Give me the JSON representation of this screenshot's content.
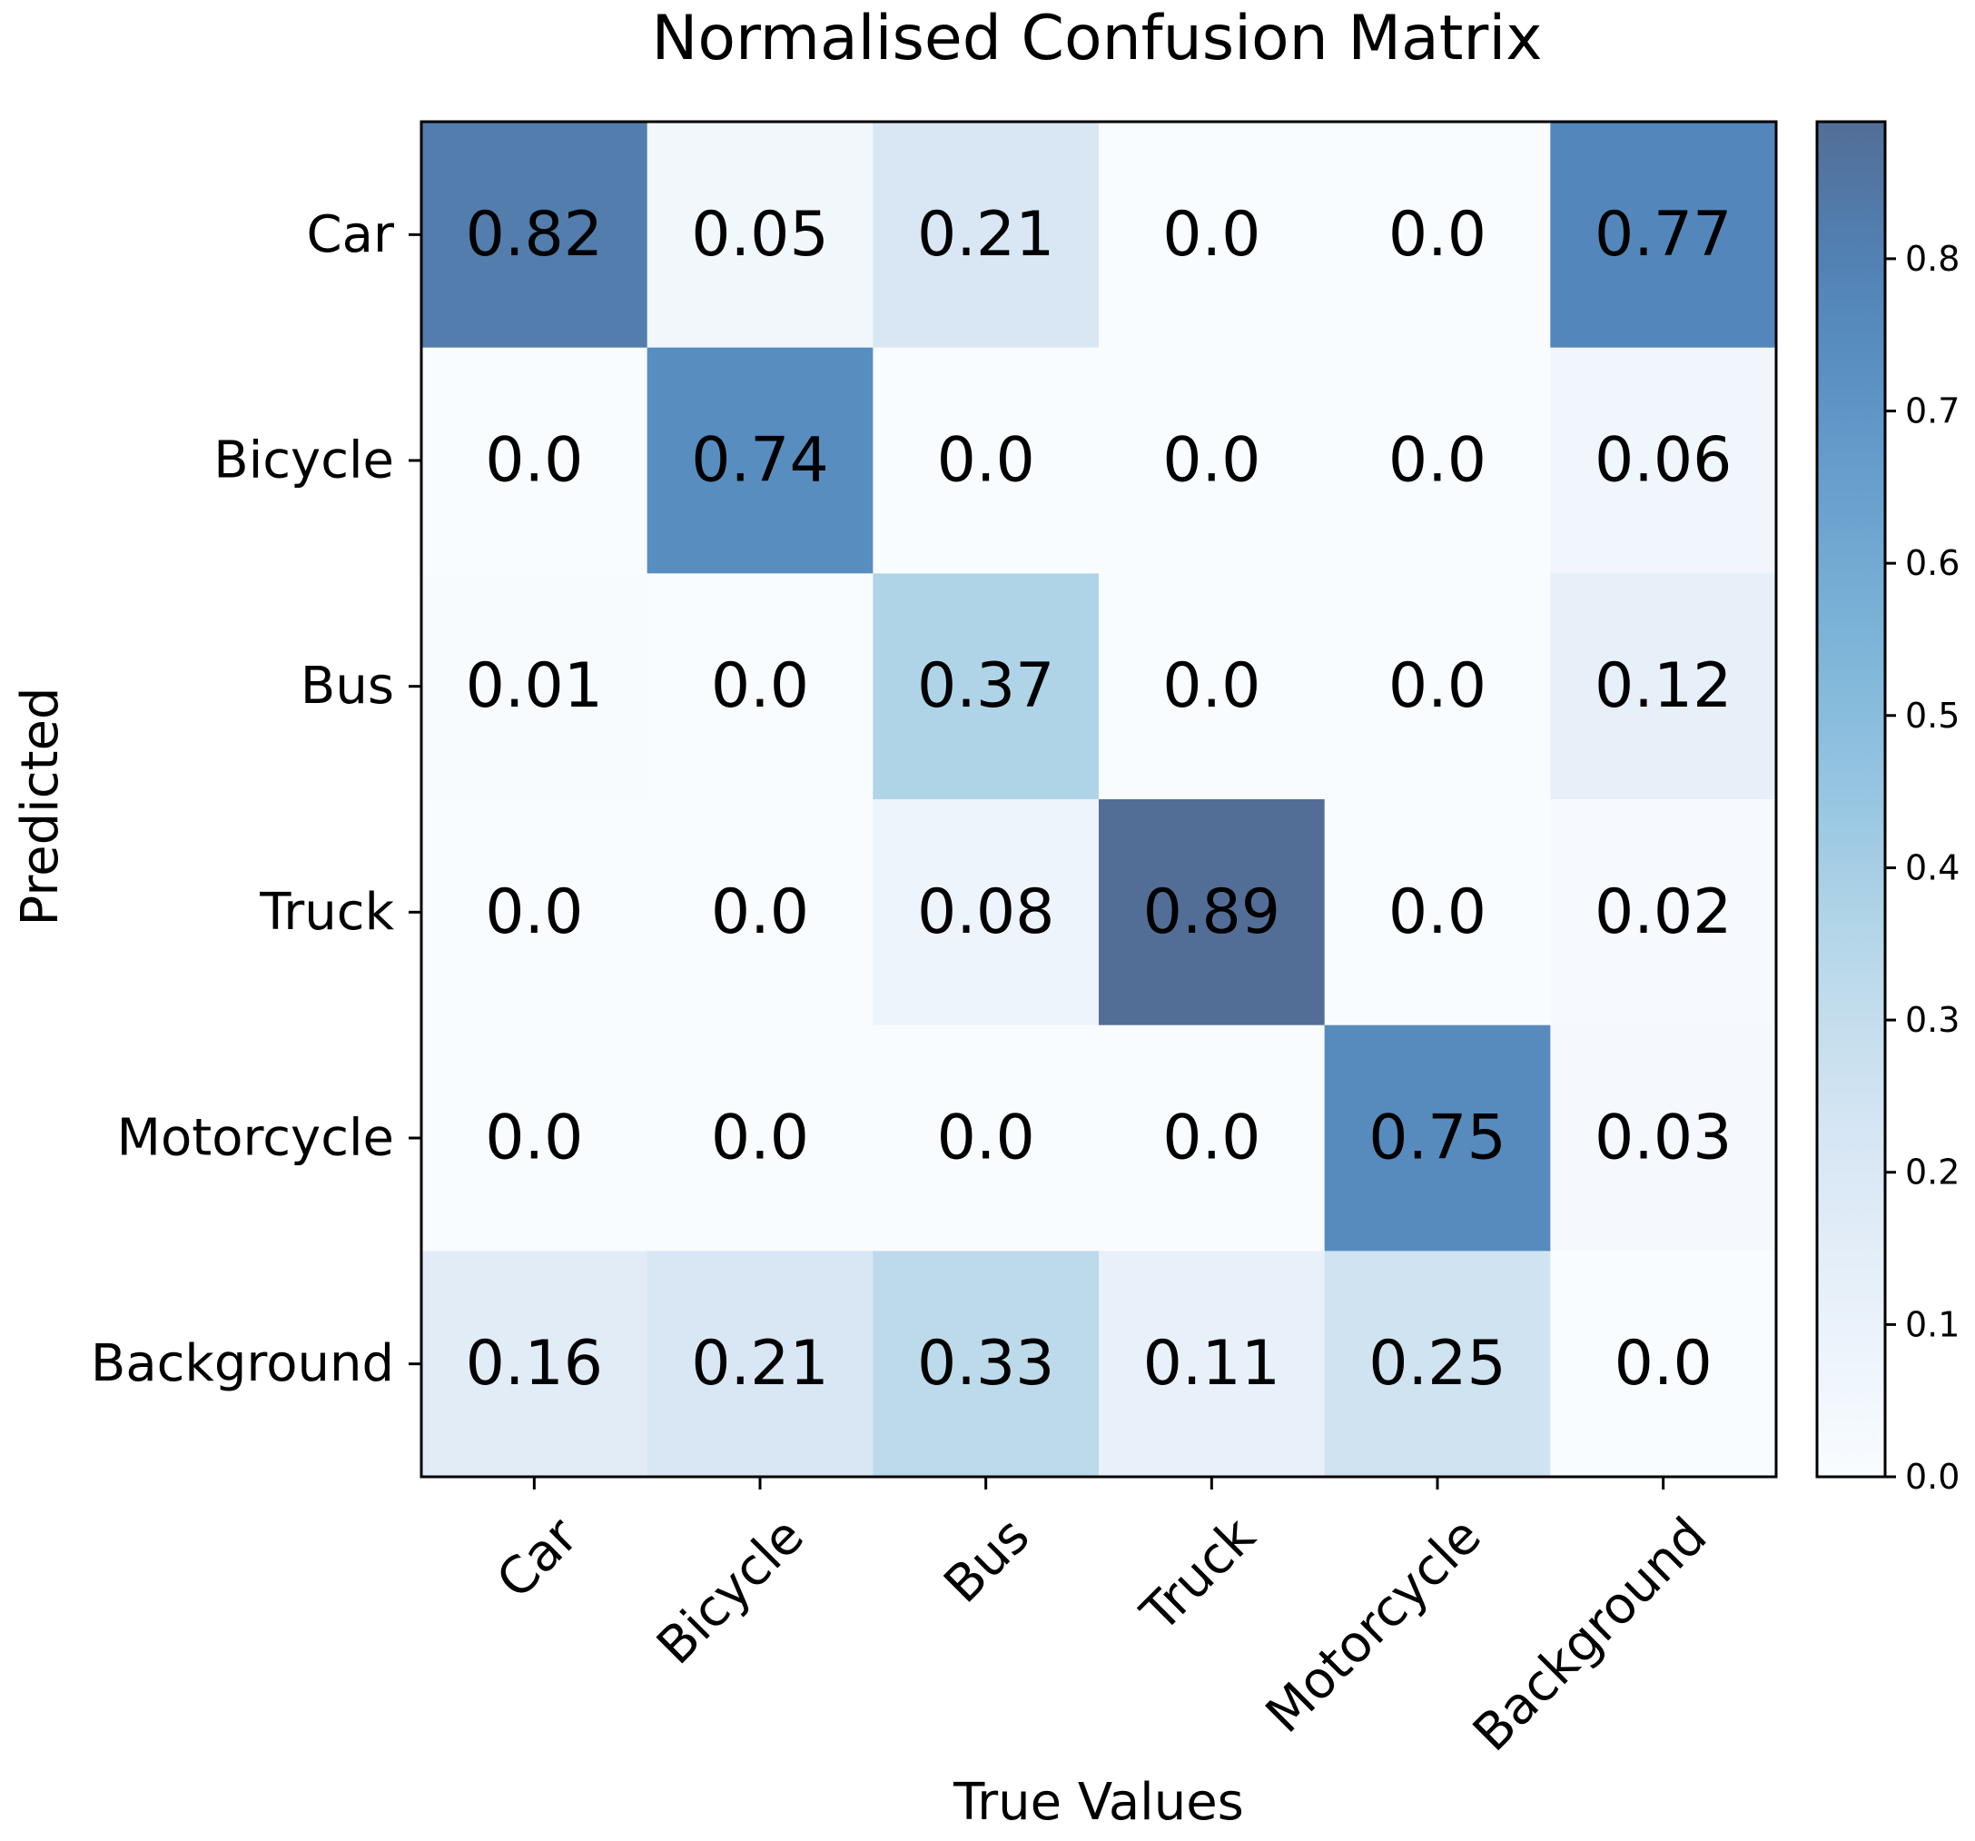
{
  "chart_data": {
    "type": "heatmap",
    "title": "Normalised Confusion Matrix",
    "xlabel": "True Values",
    "ylabel": "Predicted",
    "x_categories": [
      "Car",
      "Bicycle",
      "Bus",
      "Truck",
      "Motorcycle",
      "Background"
    ],
    "y_categories": [
      "Car",
      "Bicycle",
      "Bus",
      "Truck",
      "Motorcycle",
      "Background"
    ],
    "values": [
      [
        0.82,
        0.05,
        0.21,
        0.0,
        0.0,
        0.77
      ],
      [
        0.0,
        0.74,
        0.0,
        0.0,
        0.0,
        0.06
      ],
      [
        0.01,
        0.0,
        0.37,
        0.0,
        0.0,
        0.12
      ],
      [
        0.0,
        0.0,
        0.08,
        0.89,
        0.0,
        0.02
      ],
      [
        0.0,
        0.0,
        0.0,
        0.0,
        0.75,
        0.03
      ],
      [
        0.16,
        0.21,
        0.33,
        0.11,
        0.25,
        0.0
      ]
    ],
    "value_labels": [
      [
        "0.82",
        "0.05",
        "0.21",
        "0.0",
        "0.0",
        "0.77"
      ],
      [
        "0.0",
        "0.74",
        "0.0",
        "0.0",
        "0.0",
        "0.06"
      ],
      [
        "0.01",
        "0.0",
        "0.37",
        "0.0",
        "0.0",
        "0.12"
      ],
      [
        "0.0",
        "0.0",
        "0.08",
        "0.89",
        "0.0",
        "0.02"
      ],
      [
        "0.0",
        "0.0",
        "0.0",
        "0.0",
        "0.75",
        "0.03"
      ],
      [
        "0.16",
        "0.21",
        "0.33",
        "0.11",
        "0.25",
        "0.0"
      ]
    ],
    "colormap": "Blues",
    "cell_alpha": 0.7,
    "colorbar": {
      "range": [
        0.0,
        0.89
      ],
      "ticks": [
        0.0,
        0.1,
        0.2,
        0.3,
        0.4,
        0.5,
        0.6,
        0.7,
        0.8
      ],
      "tick_labels": [
        "0.0",
        "0.1",
        "0.2",
        "0.3",
        "0.4",
        "0.5",
        "0.6",
        "0.7",
        "0.8"
      ]
    },
    "grid": false
  }
}
